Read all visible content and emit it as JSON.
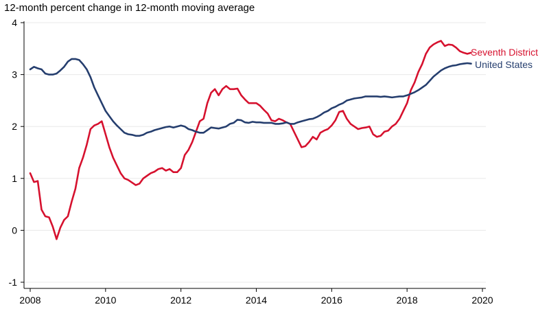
{
  "chart_data": {
    "type": "line",
    "title": "12-month percent change in 12-month moving average",
    "xlabel": "",
    "ylabel": "",
    "xlim": [
      2008,
      2020
    ],
    "ylim": [
      -1,
      4
    ],
    "x_ticks": [
      "2008",
      "2010",
      "2012",
      "2014",
      "2016",
      "2018",
      "2020"
    ],
    "y_ticks": [
      "-1",
      "0",
      "1",
      "2",
      "3",
      "4"
    ],
    "grid": true,
    "series": [
      {
        "name": "Seventh District",
        "color": "#d6112e",
        "x": [
          2008.0,
          2008.1,
          2008.2,
          2008.3,
          2008.4,
          2008.5,
          2008.6,
          2008.7,
          2008.8,
          2008.9,
          2009.0,
          2009.1,
          2009.2,
          2009.3,
          2009.4,
          2009.5,
          2009.6,
          2009.7,
          2009.8,
          2009.9,
          2010.0,
          2010.1,
          2010.2,
          2010.3,
          2010.4,
          2010.5,
          2010.6,
          2010.7,
          2010.8,
          2010.9,
          2011.0,
          2011.1,
          2011.2,
          2011.3,
          2011.4,
          2011.5,
          2011.6,
          2011.7,
          2011.8,
          2011.9,
          2012.0,
          2012.1,
          2012.2,
          2012.3,
          2012.4,
          2012.5,
          2012.6,
          2012.7,
          2012.8,
          2012.9,
          2013.0,
          2013.1,
          2013.2,
          2013.3,
          2013.4,
          2013.5,
          2013.6,
          2013.7,
          2013.8,
          2013.9,
          2014.0,
          2014.1,
          2014.2,
          2014.3,
          2014.4,
          2014.5,
          2014.6,
          2014.7,
          2014.8,
          2014.9,
          2015.0,
          2015.1,
          2015.2,
          2015.3,
          2015.4,
          2015.5,
          2015.6,
          2015.7,
          2015.8,
          2015.9,
          2016.0,
          2016.1,
          2016.2,
          2016.3,
          2016.4,
          2016.5,
          2016.6,
          2016.7,
          2016.8,
          2016.9,
          2017.0,
          2017.1,
          2017.2,
          2017.3,
          2017.4,
          2017.5,
          2017.6,
          2017.7,
          2017.8,
          2017.9,
          2018.0,
          2018.1,
          2018.2,
          2018.3,
          2018.4,
          2018.5,
          2018.6,
          2018.7,
          2018.8,
          2018.9,
          2019.0,
          2019.1,
          2019.2,
          2019.3,
          2019.4,
          2019.5,
          2019.6,
          2019.7
        ],
        "values": [
          1.1,
          0.93,
          0.95,
          0.4,
          0.27,
          0.25,
          0.07,
          -0.17,
          0.05,
          0.2,
          0.27,
          0.55,
          0.8,
          1.2,
          1.4,
          1.65,
          1.95,
          2.02,
          2.05,
          2.1,
          1.85,
          1.6,
          1.4,
          1.25,
          1.1,
          1.0,
          0.97,
          0.92,
          0.87,
          0.9,
          1.0,
          1.05,
          1.1,
          1.13,
          1.18,
          1.2,
          1.15,
          1.18,
          1.12,
          1.12,
          1.2,
          1.45,
          1.55,
          1.7,
          1.9,
          2.1,
          2.15,
          2.45,
          2.65,
          2.72,
          2.6,
          2.72,
          2.78,
          2.72,
          2.72,
          2.73,
          2.6,
          2.52,
          2.45,
          2.45,
          2.45,
          2.4,
          2.32,
          2.25,
          2.12,
          2.1,
          2.15,
          2.12,
          2.08,
          2.05,
          1.9,
          1.75,
          1.6,
          1.62,
          1.7,
          1.8,
          1.75,
          1.88,
          1.92,
          1.95,
          2.02,
          2.12,
          2.28,
          2.3,
          2.15,
          2.05,
          2.0,
          1.95,
          1.97,
          1.98,
          2.0,
          1.85,
          1.8,
          1.82,
          1.9,
          1.92,
          2.0,
          2.05,
          2.15,
          2.3,
          2.45,
          2.7,
          2.85,
          3.05,
          3.2,
          3.4,
          3.52,
          3.58,
          3.62,
          3.65,
          3.55,
          3.58,
          3.57,
          3.52,
          3.45,
          3.42,
          3.4,
          3.42
        ]
      },
      {
        "name": "United States",
        "color": "#253e6e",
        "x": [
          2008.0,
          2008.1,
          2008.2,
          2008.3,
          2008.4,
          2008.5,
          2008.6,
          2008.7,
          2008.8,
          2008.9,
          2009.0,
          2009.1,
          2009.2,
          2009.3,
          2009.4,
          2009.5,
          2009.6,
          2009.7,
          2009.8,
          2009.9,
          2010.0,
          2010.1,
          2010.2,
          2010.3,
          2010.4,
          2010.5,
          2010.6,
          2010.7,
          2010.8,
          2010.9,
          2011.0,
          2011.1,
          2011.2,
          2011.3,
          2011.4,
          2011.5,
          2011.6,
          2011.7,
          2011.8,
          2011.9,
          2012.0,
          2012.1,
          2012.2,
          2012.3,
          2012.4,
          2012.5,
          2012.6,
          2012.7,
          2012.8,
          2012.9,
          2013.0,
          2013.1,
          2013.2,
          2013.3,
          2013.4,
          2013.5,
          2013.6,
          2013.7,
          2013.8,
          2013.9,
          2014.0,
          2014.1,
          2014.2,
          2014.3,
          2014.4,
          2014.5,
          2014.6,
          2014.7,
          2014.8,
          2014.9,
          2015.0,
          2015.1,
          2015.2,
          2015.3,
          2015.4,
          2015.5,
          2015.6,
          2015.7,
          2015.8,
          2015.9,
          2016.0,
          2016.1,
          2016.2,
          2016.3,
          2016.4,
          2016.5,
          2016.6,
          2016.7,
          2016.8,
          2016.9,
          2017.0,
          2017.1,
          2017.2,
          2017.3,
          2017.4,
          2017.5,
          2017.6,
          2017.7,
          2017.8,
          2017.9,
          2018.0,
          2018.1,
          2018.2,
          2018.3,
          2018.4,
          2018.5,
          2018.6,
          2018.7,
          2018.8,
          2018.9,
          2019.0,
          2019.1,
          2019.2,
          2019.3,
          2019.4,
          2019.5,
          2019.6,
          2019.7
        ],
        "values": [
          3.1,
          3.15,
          3.12,
          3.1,
          3.02,
          3.0,
          3.0,
          3.02,
          3.08,
          3.15,
          3.25,
          3.3,
          3.3,
          3.28,
          3.2,
          3.1,
          2.95,
          2.75,
          2.6,
          2.45,
          2.3,
          2.2,
          2.1,
          2.02,
          1.95,
          1.88,
          1.85,
          1.84,
          1.82,
          1.82,
          1.84,
          1.88,
          1.9,
          1.93,
          1.95,
          1.97,
          1.99,
          2.0,
          1.98,
          2.0,
          2.02,
          2.0,
          1.95,
          1.93,
          1.9,
          1.88,
          1.88,
          1.93,
          1.98,
          1.97,
          1.96,
          1.98,
          2.0,
          2.05,
          2.07,
          2.13,
          2.12,
          2.08,
          2.07,
          2.09,
          2.08,
          2.08,
          2.07,
          2.07,
          2.07,
          2.05,
          2.05,
          2.06,
          2.08,
          2.05,
          2.05,
          2.08,
          2.1,
          2.12,
          2.14,
          2.15,
          2.18,
          2.22,
          2.27,
          2.3,
          2.35,
          2.38,
          2.42,
          2.45,
          2.5,
          2.52,
          2.54,
          2.55,
          2.56,
          2.58,
          2.58,
          2.58,
          2.58,
          2.57,
          2.58,
          2.57,
          2.56,
          2.57,
          2.58,
          2.58,
          2.6,
          2.63,
          2.66,
          2.7,
          2.75,
          2.8,
          2.88,
          2.96,
          3.02,
          3.08,
          3.12,
          3.15,
          3.17,
          3.18,
          3.2,
          3.21,
          3.22,
          3.21
        ]
      }
    ]
  }
}
